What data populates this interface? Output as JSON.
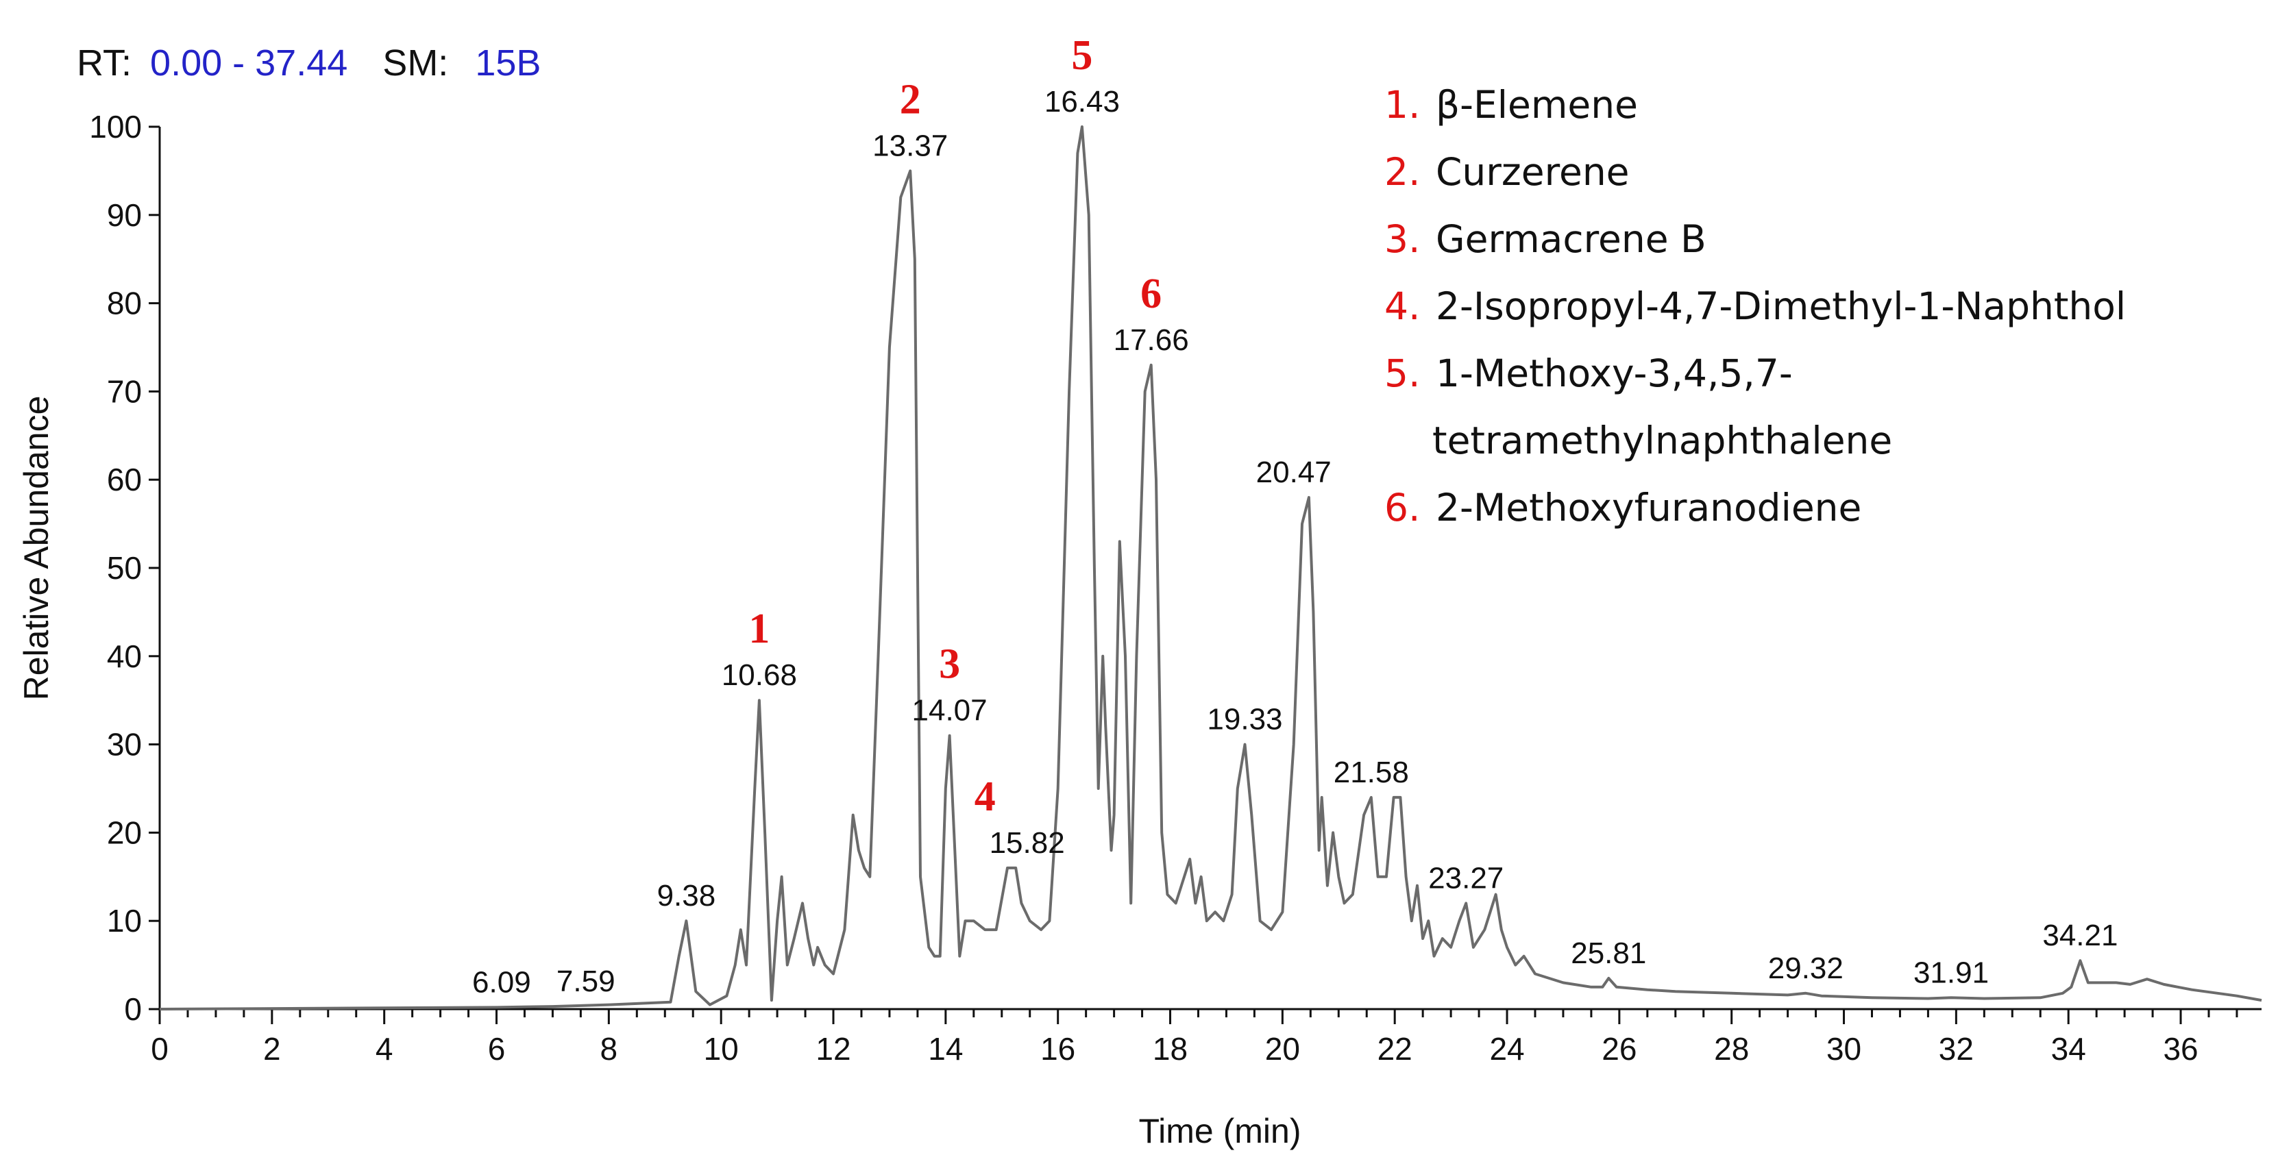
{
  "header": {
    "rt_label": "RT:",
    "rt_range": "0.00 - 37.44",
    "sm_label": "SM:",
    "sm_value": "15B"
  },
  "chart_data": {
    "type": "line",
    "xlabel": "Time (min)",
    "ylabel": "Relative Abundance",
    "xlim": [
      0,
      37.44
    ],
    "ylim": [
      0,
      100
    ],
    "x_ticks": [
      0,
      2,
      4,
      6,
      8,
      10,
      12,
      14,
      16,
      18,
      20,
      22,
      24,
      26,
      28,
      30,
      32,
      34,
      36
    ],
    "y_ticks": [
      0,
      10,
      20,
      30,
      40,
      50,
      60,
      70,
      80,
      90,
      100
    ],
    "grid": false,
    "series": [
      {
        "values": [
          [
            0,
            0
          ],
          [
            6.0,
            0.2
          ],
          [
            7.0,
            0.3
          ],
          [
            8.0,
            0.5
          ],
          [
            9.1,
            0.8
          ],
          [
            9.25,
            6
          ],
          [
            9.38,
            10
          ],
          [
            9.55,
            2
          ],
          [
            9.8,
            0.5
          ],
          [
            10.1,
            1.5
          ],
          [
            10.25,
            5
          ],
          [
            10.35,
            9
          ],
          [
            10.45,
            5
          ],
          [
            10.6,
            25
          ],
          [
            10.68,
            35
          ],
          [
            10.78,
            20
          ],
          [
            10.9,
            1
          ],
          [
            11.0,
            10
          ],
          [
            11.08,
            15
          ],
          [
            11.18,
            5
          ],
          [
            11.3,
            8
          ],
          [
            11.45,
            12
          ],
          [
            11.55,
            8
          ],
          [
            11.65,
            5
          ],
          [
            11.72,
            7
          ],
          [
            11.85,
            5
          ],
          [
            12.0,
            4
          ],
          [
            12.2,
            9
          ],
          [
            12.35,
            22
          ],
          [
            12.45,
            18
          ],
          [
            12.55,
            16
          ],
          [
            12.65,
            15
          ],
          [
            12.8,
            40
          ],
          [
            13.0,
            75
          ],
          [
            13.2,
            92
          ],
          [
            13.37,
            95
          ],
          [
            13.45,
            85
          ],
          [
            13.55,
            15
          ],
          [
            13.7,
            7
          ],
          [
            13.8,
            6
          ],
          [
            13.9,
            6
          ],
          [
            14.0,
            25
          ],
          [
            14.07,
            31
          ],
          [
            14.15,
            20
          ],
          [
            14.25,
            6
          ],
          [
            14.35,
            10
          ],
          [
            14.5,
            10
          ],
          [
            14.7,
            9
          ],
          [
            14.9,
            9
          ],
          [
            15.1,
            16
          ],
          [
            15.25,
            16
          ],
          [
            15.35,
            12
          ],
          [
            15.5,
            10
          ],
          [
            15.7,
            9
          ],
          [
            15.85,
            10
          ],
          [
            16.0,
            25
          ],
          [
            16.2,
            70
          ],
          [
            16.35,
            97
          ],
          [
            16.43,
            100
          ],
          [
            16.55,
            90
          ],
          [
            16.65,
            50
          ],
          [
            16.72,
            25
          ],
          [
            16.8,
            40
          ],
          [
            16.85,
            32
          ],
          [
            16.95,
            18
          ],
          [
            17.0,
            22
          ],
          [
            17.1,
            53
          ],
          [
            17.2,
            40
          ],
          [
            17.3,
            12
          ],
          [
            17.4,
            40
          ],
          [
            17.55,
            70
          ],
          [
            17.66,
            73
          ],
          [
            17.75,
            60
          ],
          [
            17.85,
            20
          ],
          [
            17.95,
            13
          ],
          [
            18.1,
            12
          ],
          [
            18.2,
            14
          ],
          [
            18.35,
            17
          ],
          [
            18.45,
            12
          ],
          [
            18.55,
            15
          ],
          [
            18.65,
            10
          ],
          [
            18.8,
            11
          ],
          [
            18.95,
            10
          ],
          [
            19.1,
            13
          ],
          [
            19.2,
            25
          ],
          [
            19.33,
            30
          ],
          [
            19.45,
            22
          ],
          [
            19.6,
            10
          ],
          [
            19.8,
            9
          ],
          [
            20.0,
            11
          ],
          [
            20.2,
            30
          ],
          [
            20.35,
            55
          ],
          [
            20.47,
            58
          ],
          [
            20.55,
            45
          ],
          [
            20.65,
            18
          ],
          [
            20.7,
            24
          ],
          [
            20.8,
            14
          ],
          [
            20.9,
            20
          ],
          [
            21.0,
            15
          ],
          [
            21.1,
            12
          ],
          [
            21.25,
            13
          ],
          [
            21.45,
            22
          ],
          [
            21.58,
            24
          ],
          [
            21.7,
            15
          ],
          [
            21.85,
            15
          ],
          [
            21.98,
            24
          ],
          [
            22.1,
            24
          ],
          [
            22.2,
            15
          ],
          [
            22.3,
            10
          ],
          [
            22.4,
            14
          ],
          [
            22.5,
            8
          ],
          [
            22.6,
            10
          ],
          [
            22.7,
            6
          ],
          [
            22.85,
            8
          ],
          [
            23.0,
            7
          ],
          [
            23.15,
            10
          ],
          [
            23.27,
            12
          ],
          [
            23.4,
            7
          ],
          [
            23.6,
            9
          ],
          [
            23.8,
            13
          ],
          [
            23.9,
            9
          ],
          [
            24.0,
            7
          ],
          [
            24.15,
            5
          ],
          [
            24.3,
            6
          ],
          [
            24.5,
            4
          ],
          [
            25.0,
            3
          ],
          [
            25.5,
            2.5
          ],
          [
            25.7,
            2.5
          ],
          [
            25.81,
            3.5
          ],
          [
            25.95,
            2.5
          ],
          [
            26.5,
            2.2
          ],
          [
            27.0,
            2
          ],
          [
            28.0,
            1.8
          ],
          [
            29.0,
            1.6
          ],
          [
            29.32,
            1.8
          ],
          [
            29.6,
            1.5
          ],
          [
            30.5,
            1.3
          ],
          [
            31.5,
            1.2
          ],
          [
            31.91,
            1.3
          ],
          [
            32.5,
            1.2
          ],
          [
            33.5,
            1.3
          ],
          [
            33.9,
            1.8
          ],
          [
            34.05,
            2.5
          ],
          [
            34.21,
            5.5
          ],
          [
            34.35,
            3
          ],
          [
            34.6,
            3
          ],
          [
            34.85,
            3
          ],
          [
            35.1,
            2.8
          ],
          [
            35.4,
            3.4
          ],
          [
            35.7,
            2.8
          ],
          [
            36.2,
            2.2
          ],
          [
            37.0,
            1.5
          ],
          [
            37.44,
            1
          ]
        ]
      }
    ],
    "peak_labels": [
      {
        "text": "6.09",
        "x": 6.09,
        "y": 0.2
      },
      {
        "text": "7.59",
        "x": 7.59,
        "y": 0.3
      },
      {
        "text": "9.38",
        "x": 9.38,
        "y": 10
      },
      {
        "text": "10.68",
        "x": 10.68,
        "y": 35
      },
      {
        "text": "13.37",
        "x": 13.37,
        "y": 95
      },
      {
        "text": "14.07",
        "x": 14.07,
        "y": 31
      },
      {
        "text": "15.82",
        "x": 15.45,
        "y": 16
      },
      {
        "text": "16.43",
        "x": 16.43,
        "y": 100
      },
      {
        "text": "17.66",
        "x": 17.66,
        "y": 73
      },
      {
        "text": "19.33",
        "x": 19.33,
        "y": 30
      },
      {
        "text": "20.47",
        "x": 20.2,
        "y": 58
      },
      {
        "text": "21.58",
        "x": 21.58,
        "y": 24
      },
      {
        "text": "23.27",
        "x": 23.27,
        "y": 12
      },
      {
        "text": "25.81",
        "x": 25.81,
        "y": 3.5
      },
      {
        "text": "29.32",
        "x": 29.32,
        "y": 1.8
      },
      {
        "text": "31.91",
        "x": 31.91,
        "y": 1.3
      },
      {
        "text": "34.21",
        "x": 34.21,
        "y": 5.5
      }
    ],
    "compound_markers": [
      {
        "text": "1",
        "x": 10.68,
        "y": 35
      },
      {
        "text": "2",
        "x": 13.37,
        "y": 95
      },
      {
        "text": "3",
        "x": 14.07,
        "y": 31
      },
      {
        "text": "4",
        "x": 14.7,
        "y": 16
      },
      {
        "text": "5",
        "x": 16.43,
        "y": 100
      },
      {
        "text": "6",
        "x": 17.66,
        "y": 73
      }
    ],
    "legend": [
      {
        "num": "1.",
        "name": "β-Elemene"
      },
      {
        "num": "2.",
        "name": "Curzerene"
      },
      {
        "num": "3.",
        "name": "Germacrene B"
      },
      {
        "num": "4.",
        "name": "2-Isopropyl-4,7-Dimethyl-1-Naphthol"
      },
      {
        "num": "5.",
        "name": "1-Methoxy-3,4,5,7-",
        "continuation": "tetramethylnaphthalene"
      },
      {
        "num": "6.",
        "name": "  2-Methoxyfuranodiene"
      }
    ]
  },
  "colors": {
    "trace": "#6b6b6b",
    "axis": "#111111",
    "header_value": "#2323c8",
    "compound_number": "#e01414"
  }
}
